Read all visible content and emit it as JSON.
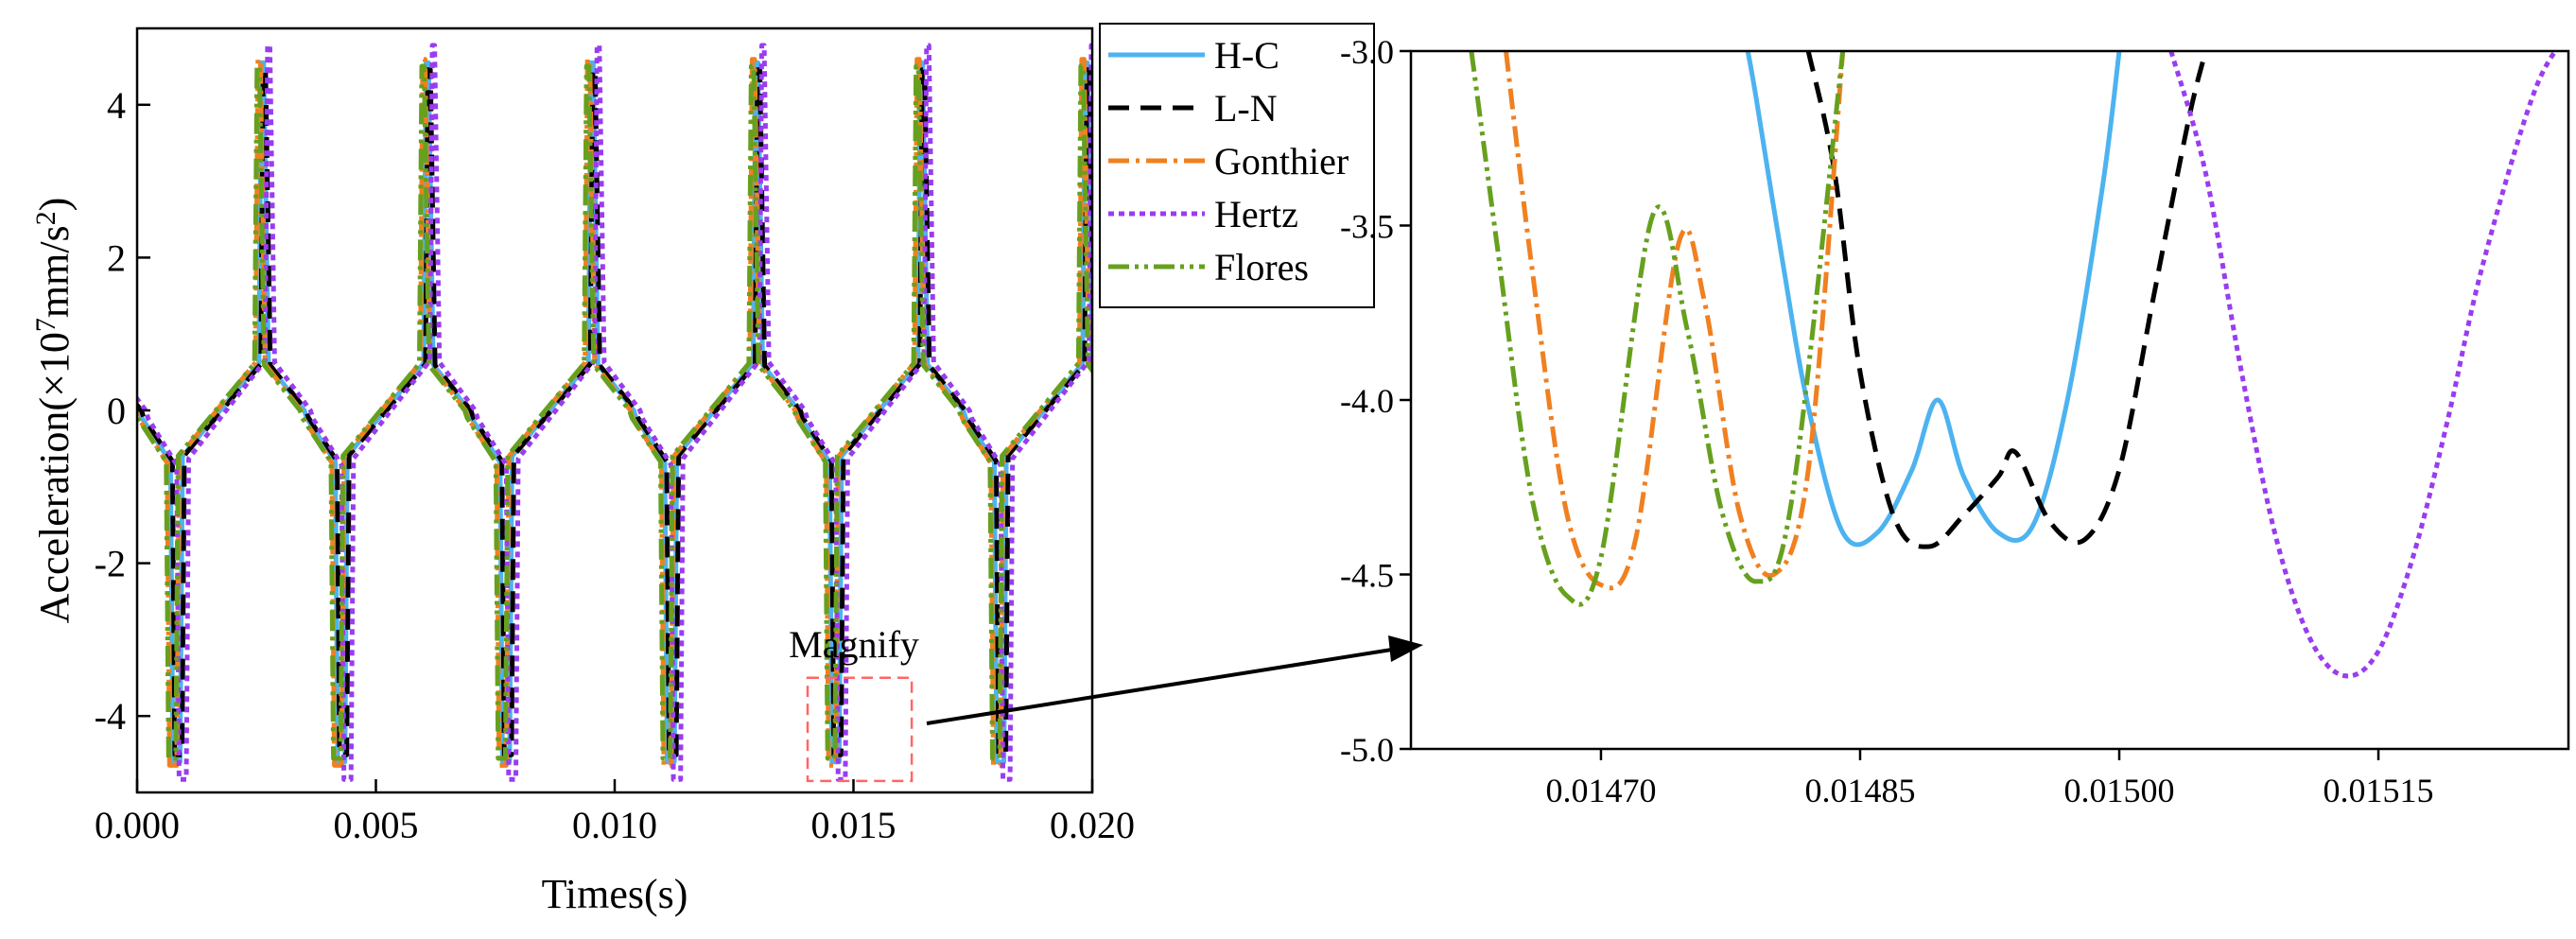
{
  "chart_data": [
    {
      "type": "line",
      "panel": "main",
      "xlabel": "Times(s)",
      "ylabel": "Acceleration(×10⁷mm/s²)",
      "ylabel_parts": {
        "prefix": "Acceleration(×10",
        "exp1": "7",
        "mid": "mm/s",
        "exp2": "2",
        "suffix": ")"
      },
      "xlim": [
        0,
        0.02
      ],
      "ylim": [
        -5,
        5
      ],
      "xticks": [
        0,
        0.005,
        0.01,
        0.015,
        0.02
      ],
      "xtick_labels": [
        "0.000",
        "0.005",
        "0.010",
        "0.015",
        "0.020"
      ],
      "yticks": [
        -4,
        -2,
        0,
        2,
        4
      ],
      "ytick_labels": [
        "-4",
        "-2",
        "0",
        "2",
        "4"
      ],
      "annotation": "Magnify",
      "magnify_box": {
        "x_range": [
          0.01404,
          0.01622
        ],
        "y_range": [
          -4.85,
          -3.5
        ]
      },
      "legend_position": "outside-right",
      "period": 0.00345,
      "waveform": {
        "phase": [
          0,
          5e-05,
          0.00065,
          0.0007,
          0.00085,
          0.0009,
          0.0025,
          0.00255,
          0.0026,
          0.0027,
          0.00345
        ],
        "value": [
          0,
          -0.1,
          -0.68,
          -4.6,
          -4.6,
          -0.6,
          0.62,
          4.55,
          4.55,
          0.6,
          0
        ]
      },
      "series": [
        {
          "name": "H-C",
          "shift": 5e-05,
          "scale": 1.0
        },
        {
          "name": "L-N",
          "shift": 9e-05,
          "scale": 0.98
        },
        {
          "name": "Gonthier",
          "shift": -2e-05,
          "scale": 1.01
        },
        {
          "name": "Hertz",
          "shift": 0.00018,
          "scale": 1.05
        },
        {
          "name": "Flores",
          "shift": -4e-05,
          "scale": 0.99
        }
      ]
    },
    {
      "type": "line",
      "panel": "inset",
      "xlim": [
        0.01459,
        0.01526
      ],
      "ylim": [
        -5,
        -3
      ],
      "xticks": [
        0.0147,
        0.01485,
        0.015,
        0.01515
      ],
      "xtick_labels": [
        "0.01470",
        "0.01485",
        "0.01500",
        "0.01515"
      ],
      "yticks": [
        -3,
        -3.5,
        -4,
        -4.5,
        -5
      ],
      "ytick_labels": [
        "-3.0",
        "-3.5",
        "-4.0",
        "-4.5",
        "-5.0"
      ],
      "series": [
        {
          "name": "H-C",
          "x": [
            0.014785,
            0.01479,
            0.014805,
            0.01482,
            0.01484,
            0.01486,
            0.01488,
            0.014895,
            0.01491,
            0.01493,
            0.01495,
            0.01497,
            0.01499,
            0.015
          ],
          "y": [
            -3.0,
            -3.14,
            -3.6,
            -4.02,
            -4.38,
            -4.38,
            -4.2,
            -4.0,
            -4.22,
            -4.38,
            -4.36,
            -4.0,
            -3.4,
            -3.0
          ]
        },
        {
          "name": "L-N",
          "x": [
            0.01482,
            0.014835,
            0.01485,
            0.01487,
            0.01489,
            0.01491,
            0.01493,
            0.01494,
            0.01496,
            0.01498,
            0.015,
            0.01502,
            0.01504,
            0.01505
          ],
          "y": [
            -3.0,
            -3.34,
            -3.92,
            -4.34,
            -4.42,
            -4.33,
            -4.22,
            -4.15,
            -4.35,
            -4.4,
            -4.2,
            -3.7,
            -3.2,
            -3.0
          ]
        },
        {
          "name": "Gonthier",
          "x": [
            0.014645,
            0.01466,
            0.01468,
            0.0147,
            0.01472,
            0.014745,
            0.01476,
            0.01478,
            0.0148,
            0.01482,
            0.01484
          ],
          "y": [
            -3.0,
            -3.62,
            -4.32,
            -4.53,
            -4.4,
            -3.55,
            -3.72,
            -4.32,
            -4.5,
            -4.2,
            -3.0
          ]
        },
        {
          "name": "Hertz",
          "x": [
            0.01503,
            0.01505,
            0.01507,
            0.01509,
            0.01511,
            0.01513,
            0.01515,
            0.01517,
            0.01519,
            0.01521,
            0.01524,
            0.01526
          ],
          "y": [
            -3.0,
            -3.35,
            -3.9,
            -4.38,
            -4.68,
            -4.79,
            -4.72,
            -4.45,
            -4.06,
            -3.62,
            -3.12,
            -2.95
          ]
        },
        {
          "name": "Flores",
          "x": [
            0.014625,
            0.01464,
            0.01466,
            0.01468,
            0.0147,
            0.01473,
            0.01475,
            0.01477,
            0.01479,
            0.01481,
            0.01484
          ],
          "y": [
            -3.0,
            -3.56,
            -4.28,
            -4.56,
            -4.45,
            -3.47,
            -3.8,
            -4.32,
            -4.52,
            -4.3,
            -3.0
          ]
        }
      ]
    }
  ],
  "legend": [
    {
      "label": "H-C",
      "color": "#4db3f0",
      "dash": ""
    },
    {
      "label": "L-N",
      "color": "#000000",
      "dash": "22 12"
    },
    {
      "label": "Gonthier",
      "color": "#f08020",
      "dash": "22 7 4 7"
    },
    {
      "label": "Hertz",
      "color": "#9a3cf0",
      "dash": "6 5"
    },
    {
      "label": "Flores",
      "color": "#66a01e",
      "dash": "22 6 4 6 4 6"
    }
  ]
}
